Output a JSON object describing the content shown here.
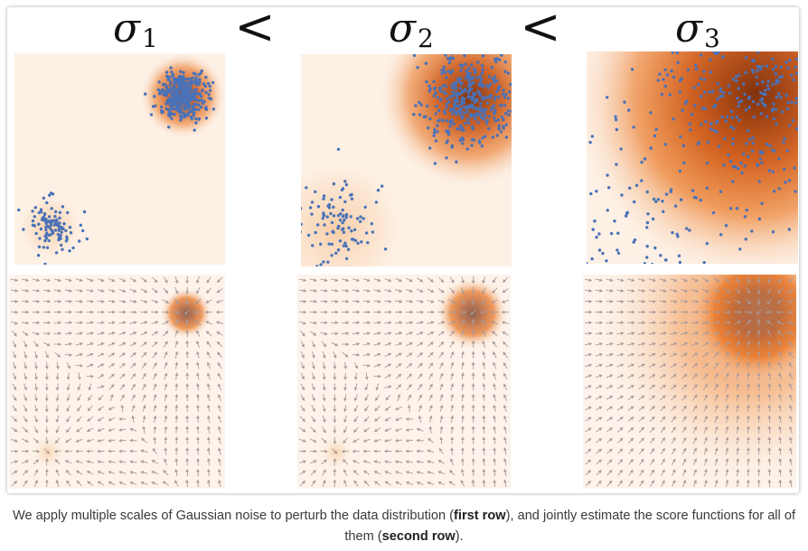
{
  "figure": {
    "columns": [
      {
        "sigma_symbol": "σ",
        "sigma_subscript": "1",
        "noise_level": 1
      },
      {
        "sigma_symbol": "σ",
        "sigma_subscript": "2",
        "noise_level": 2
      },
      {
        "sigma_symbol": "σ",
        "sigma_subscript": "3",
        "noise_level": 3
      }
    ],
    "separators": [
      "<",
      "<"
    ],
    "rows": [
      "first row",
      "second row"
    ],
    "colors": {
      "points": "#4a72b8",
      "density_high": "#7a2a06",
      "density_mid": "#e8721e",
      "density_low": "#fdf1e6",
      "arrows": "#a99a9a"
    }
  },
  "caption": {
    "part1": "We apply multiple scales of Gaussian noise to perturb the data distribution (",
    "bold1": "first row",
    "part2": "), and jointly estimate the score functions for all of them (",
    "bold2": "second row",
    "part3": ")."
  }
}
